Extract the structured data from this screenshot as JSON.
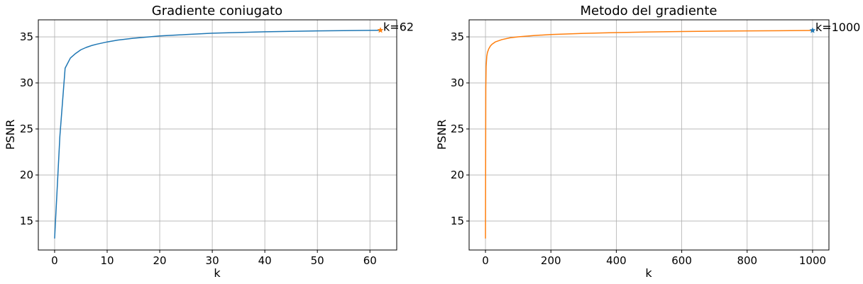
{
  "chart_data": [
    {
      "type": "line",
      "title": "Gradiente coniugato",
      "xlabel": "k",
      "ylabel": "PSNR",
      "xlim": [
        -3.1,
        65.1
      ],
      "ylim": [
        11.85,
        36.85
      ],
      "xticks": [
        0,
        10,
        20,
        30,
        40,
        50,
        60
      ],
      "yticks": [
        15,
        20,
        25,
        30,
        35
      ],
      "grid": true,
      "series": [
        {
          "color": "#1f77b4",
          "x": [
            0,
            1,
            2,
            3,
            4,
            5,
            6,
            7,
            8,
            10,
            12,
            15,
            20,
            25,
            30,
            40,
            50,
            62
          ],
          "y": [
            13.1,
            24.2,
            31.6,
            32.7,
            33.2,
            33.6,
            33.85,
            34.05,
            34.2,
            34.45,
            34.65,
            34.85,
            35.1,
            35.25,
            35.4,
            35.55,
            35.65,
            35.72
          ]
        }
      ],
      "marker": {
        "x": 62,
        "y": 35.72,
        "symbol": "star",
        "color": "#ff7f0e"
      },
      "annotations": [
        {
          "text": "k=62",
          "x": 62,
          "y": 35.72
        }
      ]
    },
    {
      "type": "line",
      "title": "Metodo del gradiente",
      "xlabel": "k",
      "ylabel": "PSNR",
      "xlim": [
        -50,
        1050
      ],
      "ylim": [
        11.85,
        36.85
      ],
      "xticks": [
        0,
        200,
        400,
        600,
        800,
        1000
      ],
      "yticks": [
        15,
        20,
        25,
        30,
        35
      ],
      "grid": true,
      "series": [
        {
          "color": "#ff7f0e",
          "x": [
            0,
            1,
            2,
            4,
            6,
            10,
            15,
            20,
            30,
            50,
            75,
            100,
            150,
            200,
            300,
            400,
            500,
            600,
            700,
            800,
            900,
            1000
          ],
          "y": [
            13.1,
            29.5,
            31.8,
            32.9,
            33.3,
            33.7,
            34.0,
            34.2,
            34.45,
            34.7,
            34.9,
            35.0,
            35.15,
            35.25,
            35.38,
            35.47,
            35.53,
            35.58,
            35.62,
            35.65,
            35.67,
            35.7
          ]
        }
      ],
      "marker": {
        "x": 1000,
        "y": 35.7,
        "symbol": "star",
        "color": "#1f77b4"
      },
      "annotations": [
        {
          "text": "k=1000",
          "x": 1000,
          "y": 35.7
        }
      ]
    }
  ]
}
